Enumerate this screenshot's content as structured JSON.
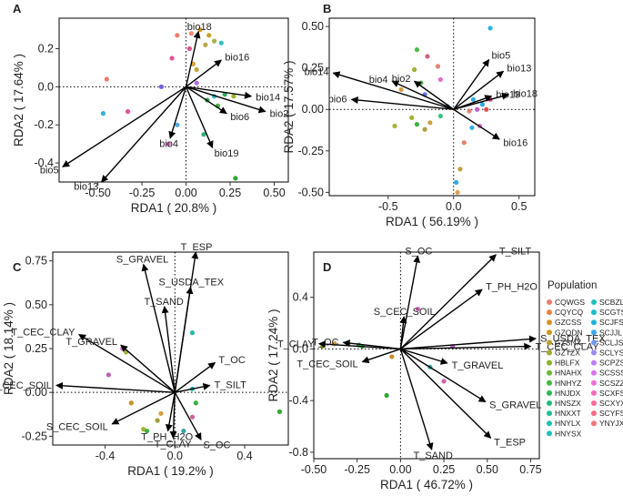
{
  "chart_data": [
    {
      "type": "scatter",
      "panel_label": "A",
      "xlabel": "RDA1 ( 20.8% )",
      "ylabel": "RDA2 ( 17.64% )",
      "xlim": [
        -0.72,
        0.58
      ],
      "ylim": [
        -0.5,
        0.36
      ],
      "xticks": [
        -0.5,
        -0.25,
        0.0,
        0.25,
        0.5
      ],
      "xtick_labels": [
        "-0.50",
        "-0.25",
        "0.00",
        "0.25",
        "0.50"
      ],
      "yticks": [
        -0.4,
        -0.2,
        0.0,
        0.2
      ],
      "ytick_labels": [
        "-0.4",
        "-0.2",
        "0.0",
        "0.2"
      ],
      "vectors": [
        {
          "label": "bio18",
          "x": 0.07,
          "y": 0.29
        },
        {
          "label": "bio16",
          "x": 0.2,
          "y": 0.14
        },
        {
          "label": "bio14",
          "x": 0.37,
          "y": -0.05
        },
        {
          "label": "bio2",
          "x": 0.45,
          "y": -0.13
        },
        {
          "label": "bio6",
          "x": 0.23,
          "y": -0.14
        },
        {
          "label": "bio19",
          "x": 0.15,
          "y": -0.32
        },
        {
          "label": "bio4",
          "x": -0.09,
          "y": -0.27
        },
        {
          "label": "bio5",
          "x": -0.7,
          "y": -0.42
        },
        {
          "label": "bio13",
          "x": -0.48,
          "y": -0.5
        }
      ],
      "points": [
        {
          "x": -0.05,
          "y": 0.27,
          "c": "#E8806F"
        },
        {
          "x": 0.03,
          "y": 0.28,
          "c": "#F08A6C"
        },
        {
          "x": 0.08,
          "y": 0.3,
          "c": "#D09A2A"
        },
        {
          "x": 0.13,
          "y": 0.27,
          "c": "#C9A02F"
        },
        {
          "x": 0.11,
          "y": 0.22,
          "c": "#B9A83A"
        },
        {
          "x": 0.16,
          "y": 0.24,
          "c": "#A8B33D"
        },
        {
          "x": 0.2,
          "y": 0.23,
          "c": "#30C0C8"
        },
        {
          "x": 0.02,
          "y": 0.2,
          "c": "#E05090"
        },
        {
          "x": 0.04,
          "y": 0.12,
          "c": "#D6A03A"
        },
        {
          "x": 0.06,
          "y": 0.09,
          "c": "#C4A63A"
        },
        {
          "x": -0.08,
          "y": 0.15,
          "c": "#E84FA0"
        },
        {
          "x": -0.45,
          "y": 0.04,
          "c": "#E8806F"
        },
        {
          "x": -0.47,
          "y": -0.14,
          "c": "#30B0E0"
        },
        {
          "x": -0.33,
          "y": -0.13,
          "c": "#E0509A"
        },
        {
          "x": -0.14,
          "y": 0.0,
          "c": "#7060E0"
        },
        {
          "x": 0.06,
          "y": 0.02,
          "c": "#B06AE0"
        },
        {
          "x": 0.16,
          "y": -0.05,
          "c": "#2DB8D8"
        },
        {
          "x": 0.22,
          "y": -0.04,
          "c": "#2EA860"
        },
        {
          "x": 0.27,
          "y": -0.05,
          "c": "#A0B030"
        },
        {
          "x": 0.18,
          "y": -0.1,
          "c": "#40B040"
        },
        {
          "x": 0.12,
          "y": -0.07,
          "c": "#30A848"
        },
        {
          "x": -0.05,
          "y": -0.2,
          "c": "#50A8E0"
        },
        {
          "x": -0.1,
          "y": -0.3,
          "c": "#E070C8"
        },
        {
          "x": 0.1,
          "y": -0.25,
          "c": "#30B070"
        },
        {
          "x": 0.28,
          "y": -0.48,
          "c": "#2CA830"
        }
      ]
    },
    {
      "type": "scatter",
      "panel_label": "B",
      "xlabel": "RDA1 ( 56.19% )",
      "ylabel": "RDA2 ( 17.57% )",
      "xlim": [
        -0.95,
        0.62
      ],
      "ylim": [
        -0.52,
        0.55
      ],
      "xticks": [
        -0.5,
        0.0,
        0.5
      ],
      "xtick_labels": [
        "-0.5",
        "0.0",
        "0.5"
      ],
      "yticks": [
        -0.5,
        -0.25,
        0.0,
        0.25,
        0.5
      ],
      "ytick_labels": [
        "-0.50",
        "-0.25",
        "0.00",
        "0.25",
        "0.50"
      ],
      "vectors": [
        {
          "label": "bio14",
          "x": -0.92,
          "y": 0.22
        },
        {
          "label": "bio4",
          "x": -0.47,
          "y": 0.17
        },
        {
          "label": "bio2",
          "x": -0.3,
          "y": 0.17
        },
        {
          "label": "bio6",
          "x": -0.78,
          "y": 0.06
        },
        {
          "label": "bio5",
          "x": 0.27,
          "y": 0.3
        },
        {
          "label": "bio13",
          "x": 0.38,
          "y": 0.23
        },
        {
          "label": "bio19",
          "x": 0.29,
          "y": 0.08
        },
        {
          "label": "bio18",
          "x": 0.42,
          "y": 0.09
        },
        {
          "label": "bio16",
          "x": 0.35,
          "y": -0.18
        }
      ],
      "points": [
        {
          "x": 0.28,
          "y": 0.49,
          "c": "#30B0E0"
        },
        {
          "x": -0.28,
          "y": 0.36,
          "c": "#50B850"
        },
        {
          "x": -0.2,
          "y": 0.32,
          "c": "#D06080"
        },
        {
          "x": -0.12,
          "y": 0.26,
          "c": "#E8806F"
        },
        {
          "x": -0.3,
          "y": 0.24,
          "c": "#A0B030"
        },
        {
          "x": -0.25,
          "y": 0.16,
          "c": "#40B040"
        },
        {
          "x": -0.1,
          "y": 0.18,
          "c": "#E070C8"
        },
        {
          "x": -0.4,
          "y": 0.12,
          "c": "#D0A040"
        },
        {
          "x": -0.22,
          "y": 0.09,
          "c": "#6070E0"
        },
        {
          "x": 0.15,
          "y": 0.06,
          "c": "#30B0E0"
        },
        {
          "x": 0.22,
          "y": 0.03,
          "c": "#30A8E0"
        },
        {
          "x": 0.28,
          "y": 0.06,
          "c": "#E0509A"
        },
        {
          "x": 0.12,
          "y": -0.01,
          "c": "#E8806F"
        },
        {
          "x": 0.18,
          "y": 0.0,
          "c": "#C060D0"
        },
        {
          "x": 0.25,
          "y": 0.0,
          "c": "#E05050"
        },
        {
          "x": -0.05,
          "y": 0.02,
          "c": "#60A0E0"
        },
        {
          "x": -0.32,
          "y": -0.05,
          "c": "#A0B030"
        },
        {
          "x": -0.28,
          "y": -0.09,
          "c": "#40B040"
        },
        {
          "x": -0.18,
          "y": -0.08,
          "c": "#D0A040"
        },
        {
          "x": -0.22,
          "y": -0.12,
          "c": "#B0A040"
        },
        {
          "x": -0.1,
          "y": -0.04,
          "c": "#40C080"
        },
        {
          "x": -0.45,
          "y": -0.1,
          "c": "#A8B040"
        },
        {
          "x": 0.14,
          "y": -0.11,
          "c": "#30B0E0"
        },
        {
          "x": 0.2,
          "y": -0.1,
          "c": "#E070C8"
        },
        {
          "x": 0.08,
          "y": -0.2,
          "c": "#E8806F"
        },
        {
          "x": 0.05,
          "y": -0.36,
          "c": "#C0A040"
        },
        {
          "x": 0.02,
          "y": -0.44,
          "c": "#30A8E0"
        },
        {
          "x": 0.03,
          "y": -0.5,
          "c": "#E0A050"
        }
      ]
    },
    {
      "type": "scatter",
      "panel_label": "C",
      "xlabel": "RDA1 ( 19.2% )",
      "ylabel": "RDA2 ( 18.14% )",
      "xlim": [
        -0.7,
        0.65
      ],
      "ylim": [
        -0.3,
        0.8
      ],
      "xticks": [
        -0.4,
        0.0,
        0.4
      ],
      "xtick_labels": [
        "-0.4",
        "0.0",
        "0.4"
      ],
      "yticks": [
        -0.25,
        0.0,
        0.25,
        0.5,
        0.75
      ],
      "ytick_labels": [
        "-0.25",
        "0.00",
        "0.25",
        "0.50",
        "0.75"
      ],
      "vectors": [
        {
          "label": "T_ESP",
          "x": 0.12,
          "y": 0.8
        },
        {
          "label": "S_GRAVEL",
          "x": -0.18,
          "y": 0.73
        },
        {
          "label": "S_USDA_TEX",
          "x": 0.09,
          "y": 0.6
        },
        {
          "label": "T_SAND",
          "x": -0.06,
          "y": 0.49
        },
        {
          "label": "T_CEC_CLAY",
          "x": -0.55,
          "y": 0.33
        },
        {
          "label": "T_GRAVEL",
          "x": -0.31,
          "y": 0.27
        },
        {
          "label": "T_OC",
          "x": 0.23,
          "y": 0.17
        },
        {
          "label": "T_SILT",
          "x": 0.2,
          "y": 0.04
        },
        {
          "label": "T_CEC_SOIL",
          "x": -0.68,
          "y": 0.04
        },
        {
          "label": "S_CEC_SOIL",
          "x": -0.36,
          "y": -0.18
        },
        {
          "label": "T_PH_H2O",
          "x": -0.04,
          "y": -0.22
        },
        {
          "label": "T_CLAY",
          "x": -0.01,
          "y": -0.26
        },
        {
          "label": "S_OC",
          "x": 0.15,
          "y": -0.27
        }
      ],
      "points": [
        {
          "x": 0.1,
          "y": 0.34,
          "c": "#2AB5A8"
        },
        {
          "x": -0.3,
          "y": 0.25,
          "c": "#E070C8"
        },
        {
          "x": -0.28,
          "y": 0.23,
          "c": "#A0B030"
        },
        {
          "x": -0.38,
          "y": 0.1,
          "c": "#C060B0"
        },
        {
          "x": 0.1,
          "y": 0.02,
          "c": "#2AB5A8"
        },
        {
          "x": -0.25,
          "y": -0.06,
          "c": "#C8902A"
        },
        {
          "x": 0.12,
          "y": -0.06,
          "c": "#30B040"
        },
        {
          "x": -0.08,
          "y": -0.12,
          "c": "#D0A040"
        },
        {
          "x": -0.1,
          "y": -0.16,
          "c": "#A0A030"
        },
        {
          "x": 0.1,
          "y": -0.14,
          "c": "#D060A0"
        },
        {
          "x": -0.18,
          "y": -0.21,
          "c": "#A0B030"
        },
        {
          "x": -0.16,
          "y": -0.22,
          "c": "#40B040"
        },
        {
          "x": 0.05,
          "y": -0.22,
          "c": "#30A8A0"
        },
        {
          "x": 0.6,
          "y": -0.11,
          "c": "#30A830"
        }
      ]
    },
    {
      "type": "scatter",
      "panel_label": "D",
      "xlabel": "RDA1 ( 46.72% )",
      "ylabel": "RDA2 ( 17.24% )",
      "xlim": [
        -0.5,
        0.8
      ],
      "ylim": [
        -0.85,
        0.75
      ],
      "xticks": [
        -0.5,
        -0.25,
        0.0,
        0.25,
        0.5,
        0.75
      ],
      "xtick_labels": [
        "-0.50",
        "-0.25",
        "0.00",
        "0.25",
        "0.50",
        "0.75"
      ],
      "yticks": [
        -0.8,
        -0.4,
        0.0,
        0.4
      ],
      "ytick_labels": [
        "-0.8",
        "-0.4",
        "0.0",
        "0.4"
      ],
      "vectors": [
        {
          "label": "S_OC",
          "x": 0.1,
          "y": 0.72
        },
        {
          "label": "T_SILT",
          "x": 0.55,
          "y": 0.73
        },
        {
          "label": "T_PH_H2O",
          "x": 0.47,
          "y": 0.46
        },
        {
          "label": "S_CEC_SOIL",
          "x": 0.02,
          "y": 0.25
        },
        {
          "label": "S_USDA_TEX",
          "x": 0.78,
          "y": 0.08
        },
        {
          "label": "T_CEC_CLAY",
          "x": 0.75,
          "y": 0.02
        },
        {
          "label": "T_CLAY",
          "x": -0.47,
          "y": 0.04
        },
        {
          "label": "T_OC",
          "x": -0.33,
          "y": 0.05
        },
        {
          "label": "T_GRAVEL",
          "x": 0.27,
          "y": -0.11
        },
        {
          "label": "T_CEC_SOIL",
          "x": -0.22,
          "y": -0.1
        },
        {
          "label": "S_GRAVEL",
          "x": 0.49,
          "y": -0.41
        },
        {
          "label": "T_ESP",
          "x": 0.52,
          "y": -0.69
        },
        {
          "label": "T_SAND",
          "x": 0.18,
          "y": -0.78
        }
      ],
      "points": [
        {
          "x": 0.1,
          "y": 0.31,
          "c": "#E070C8"
        },
        {
          "x": 0.3,
          "y": 0.02,
          "c": "#C060D0"
        },
        {
          "x": -0.45,
          "y": 0.02,
          "c": "#A0B030"
        },
        {
          "x": -0.38,
          "y": 0.04,
          "c": "#C8902A"
        },
        {
          "x": -0.3,
          "y": 0.04,
          "c": "#E0A030"
        },
        {
          "x": -0.24,
          "y": 0.03,
          "c": "#30A840"
        },
        {
          "x": -0.22,
          "y": 0.02,
          "c": "#40B040"
        },
        {
          "x": -0.05,
          "y": -0.06,
          "c": "#C8902A"
        },
        {
          "x": 0.17,
          "y": -0.14,
          "c": "#2AB5A8"
        },
        {
          "x": 0.25,
          "y": -0.25,
          "c": "#D060B0"
        },
        {
          "x": -0.08,
          "y": -0.36,
          "c": "#30A830"
        }
      ]
    }
  ],
  "legend": {
    "title": "Population",
    "items": [
      {
        "label": "CQWGS",
        "color": "#F07B6E"
      },
      {
        "label": "SCBZL",
        "color": "#21BFBF"
      },
      {
        "label": "CQYCQ",
        "color": "#EE8240"
      },
      {
        "label": "SCGTS",
        "color": "#1FBAC9"
      },
      {
        "label": "GZCSS",
        "color": "#DB8F25"
      },
      {
        "label": "SCJFS",
        "color": "#20B3DB"
      },
      {
        "label": "GZQDN",
        "color": "#CB9A1E"
      },
      {
        "label": "SCJJL",
        "color": "#39A7E8"
      },
      {
        "label": "GZSNX",
        "color": "#B8A32A"
      },
      {
        "label": "SCLJS",
        "color": "#6D9BF0"
      },
      {
        "label": "GZTZX",
        "color": "#A3AA2C"
      },
      {
        "label": "SCLYS",
        "color": "#9A8CF4"
      },
      {
        "label": "HBLFX",
        "color": "#8AB12E"
      },
      {
        "label": "SCPZS",
        "color": "#BC7EF2"
      },
      {
        "label": "HNAHX",
        "color": "#6CB732"
      },
      {
        "label": "SCSSS",
        "color": "#D774E6"
      },
      {
        "label": "HNHYZ",
        "color": "#3DBB3A"
      },
      {
        "label": "SCSZZ",
        "color": "#EA6ED3"
      },
      {
        "label": "HNJDX",
        "color": "#25BB57"
      },
      {
        "label": "SCXFS",
        "color": "#F36AB9"
      },
      {
        "label": "HNSZX",
        "color": "#1EBB7A"
      },
      {
        "label": "SCXYX",
        "color": "#F8699C"
      },
      {
        "label": "HNXXT",
        "color": "#1EBE98"
      },
      {
        "label": "SCYFS",
        "color": "#F66C84"
      },
      {
        "label": "HNYLX",
        "color": "#1FC0AE"
      },
      {
        "label": "YNYJX",
        "color": "#F3767A"
      },
      {
        "label": "HNYSX",
        "color": "#1FBFC0"
      }
    ]
  }
}
